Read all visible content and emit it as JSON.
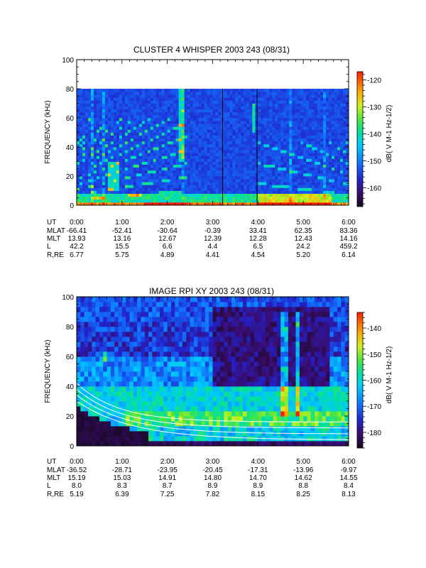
{
  "chart_data": [
    {
      "type": "heatmap",
      "title": "CLUSTER 4 WHISPER 2003 243 (08/31)",
      "ylabel": "FREQUENCY (kHz)",
      "ylim": [
        0,
        100
      ],
      "y_ticks": [
        "0",
        "20",
        "40",
        "60",
        "80",
        "100"
      ],
      "data_ylim": [
        0,
        80
      ],
      "xlim_hours": [
        0,
        6
      ],
      "colorbar": {
        "label": "dB( V M-1 Hz-1/2)",
        "range": [
          -167,
          -117
        ],
        "ticks": [
          "-120",
          "-130",
          "-140",
          "-150",
          "-160"
        ],
        "tick_values": [
          -120,
          -130,
          -140,
          -150,
          -160
        ]
      },
      "ephemeris": {
        "row_labels": [
          "UT",
          "MLAT",
          "MLT",
          "L",
          "R,RE"
        ],
        "columns": [
          [
            "0:00",
            "-66.41",
            "13.93",
            "42.2",
            "6.77"
          ],
          [
            "1:00",
            "-52.41",
            "13.16",
            "15.5",
            "5.75"
          ],
          [
            "2:00",
            "-30.64",
            "12.67",
            "6.6",
            "4.89"
          ],
          [
            "3:00",
            "-0.39",
            "12.39",
            "4.4",
            "4.41"
          ],
          [
            "4:00",
            "33.41",
            "12.28",
            "6.5",
            "4.54"
          ],
          [
            "5:00",
            "62.35",
            "12.43",
            "24.2",
            "5.20"
          ],
          [
            "6:00",
            "83.36",
            "14.16",
            "459.2",
            "6.14"
          ]
        ]
      }
    },
    {
      "type": "heatmap",
      "title": "IMAGE RPI XY 2003 243 (08/31)",
      "ylabel": "FREQUENCY (kHz)",
      "ylim": [
        0,
        100
      ],
      "y_ticks": [
        "0",
        "20",
        "40",
        "60",
        "80",
        "100"
      ],
      "data_ylim": [
        0,
        100
      ],
      "xlim_hours": [
        0,
        6
      ],
      "colorbar": {
        "label": "dB( V M-1 Hz-1/2)",
        "range": [
          -186,
          -134
        ],
        "ticks": [
          "-140",
          "-150",
          "-160",
          "-170",
          "-180"
        ],
        "tick_values": [
          -140,
          -150,
          -160,
          -170,
          -180
        ]
      },
      "ephemeris": {
        "row_labels": [
          "UT",
          "MLAT",
          "MLT",
          "L",
          "R,RE"
        ],
        "columns": [
          [
            "0:00",
            "-36.52",
            "15.19",
            "8.0",
            "5.19"
          ],
          [
            "1:00",
            "-28.71",
            "15.03",
            "8.3",
            "6.39"
          ],
          [
            "2:00",
            "-23.95",
            "14.91",
            "8.7",
            "7.25"
          ],
          [
            "3:00",
            "-20.45",
            "14.80",
            "8.9",
            "7.82"
          ],
          [
            "4:00",
            "-17.31",
            "14.70",
            "8.9",
            "8.15"
          ],
          [
            "5:00",
            "-13.96",
            "14.62",
            "8.8",
            "8.25"
          ],
          [
            "6:00",
            "-9.97",
            "14.55",
            "8.4",
            "8.13"
          ]
        ]
      }
    }
  ]
}
